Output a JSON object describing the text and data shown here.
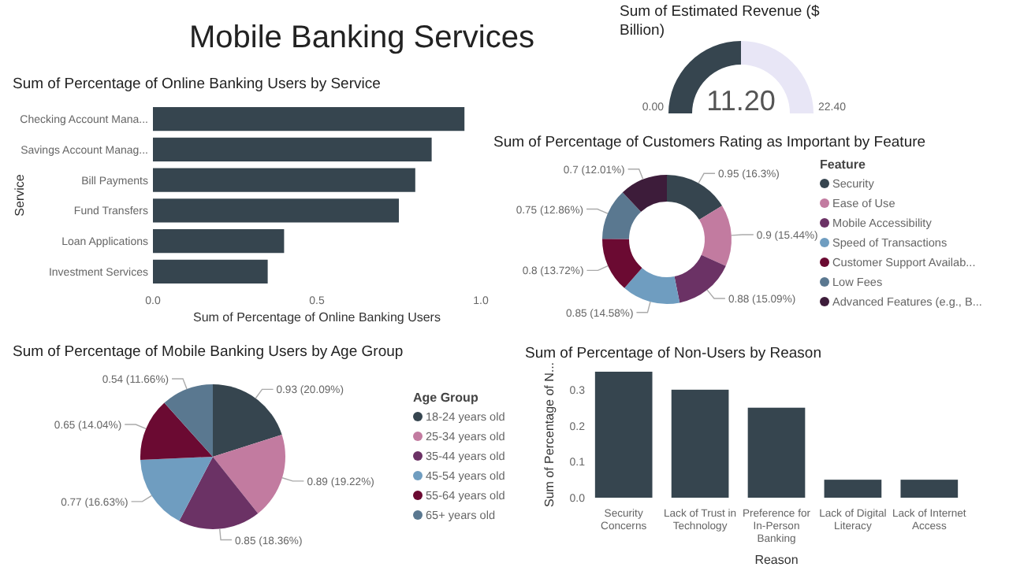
{
  "chart_data": [
    {
      "type": "other",
      "title": "Mobile Banking Services"
    },
    {
      "type": "bar",
      "orientation": "horizontal",
      "title": "Sum of Percentage of Online Banking Users by Service",
      "xlabel": "Sum of Percentage of Online Banking Users",
      "ylabel": "Service",
      "categories": [
        "Checking Account Mana...",
        "Savings Account Manag...",
        "Bill Payments",
        "Fund Transfers",
        "Loan Applications",
        "Investment Services"
      ],
      "values": [
        0.95,
        0.85,
        0.8,
        0.75,
        0.4,
        0.35
      ],
      "color": "#36454f",
      "xlim": [
        0,
        1
      ],
      "xticks": [
        {
          "value": 0,
          "label": "0.0"
        },
        0.5,
        {
          "value": 1,
          "label": "1.0"
        }
      ],
      "grid": false
    },
    {
      "type": "donut",
      "title": "Sum of Estimated Revenue ($ Billion)",
      "categories": [
        null,
        null
      ],
      "values": [
        11.2,
        11.2
      ],
      "colors": [
        "#36454f",
        "#e8e6f6"
      ],
      "value_labels": [
        "11.20",
        null
      ],
      "annotations": [
        "0.00",
        "22.40"
      ]
    },
    {
      "type": "donut",
      "title": "Sum of Percentage of Customers Rating as Important by Feature",
      "legend_title": "Feature",
      "legend": "right",
      "categories": [
        "Security",
        "Ease of Use",
        "Mobile Accessibility",
        "Speed of Transactions",
        "Customer Support Availab...",
        "Low Fees",
        "Advanced Features (e.g., B..."
      ],
      "values": [
        0.95,
        0.9,
        0.88,
        0.85,
        0.8,
        0.75,
        0.7
      ],
      "colors": [
        "#36454f",
        "#c27ba0",
        "#6b3265",
        "#6f9dc0",
        "#6b0a32",
        "#5a7890",
        "#3d1c3a"
      ],
      "value_labels": [
        "0.95 (16.3%)",
        "0.9 (15.44%)",
        "0.88 (15.09%)",
        "0.85 (14.58%)",
        "0.8 (13.72%)",
        "0.75 (12.86%)",
        "0.7 (12.01%)"
      ]
    },
    {
      "type": "pie",
      "title": "Sum of Percentage of Mobile Banking Users by Age Group",
      "legend_title": "Age Group",
      "legend": "right",
      "categories": [
        "18-24 years old",
        "25-34 years old",
        "35-44 years old",
        "45-54 years old",
        "55-64 years old",
        "65+ years old"
      ],
      "values": [
        0.93,
        0.89,
        0.85,
        0.77,
        0.65,
        0.54
      ],
      "colors": [
        "#36454f",
        "#c27ba0",
        "#6b3265",
        "#6f9dc0",
        "#6b0a32",
        "#5a7890"
      ],
      "value_labels": [
        "0.93 (20.09%)",
        "0.89 (19.22%)",
        "0.85 (18.36%)",
        "0.77 (16.63%)",
        "0.65 (14.04%)",
        "0.54 (11.66%)"
      ]
    },
    {
      "type": "bar",
      "title": "Sum of Percentage of Non-Users by Reason",
      "xlabel": "Reason",
      "ylabel": "Sum of Percentage of N...",
      "categories": [
        "Security Concerns",
        "Lack of Trust in Technology",
        "Preference for In-Person Banking",
        "Lack of Digital Literacy",
        "Lack of Internet Access"
      ],
      "values": [
        0.35,
        0.3,
        0.25,
        0.05,
        0.05
      ],
      "color": "#36454f",
      "ylim": [
        0,
        0.35
      ],
      "yticks": [
        {
          "value": 0,
          "label": "0.0"
        },
        0.1,
        0.2,
        0.3
      ],
      "grid": false
    }
  ]
}
